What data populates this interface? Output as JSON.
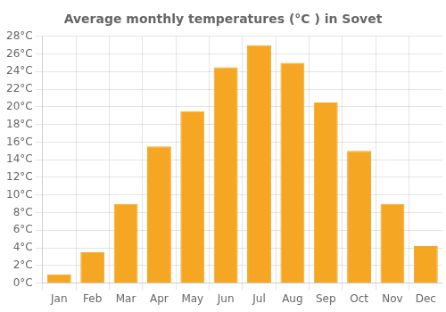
{
  "chart_data": {
    "type": "bar",
    "title": "Average monthly temperatures (°C ) in Sovet",
    "categories": [
      "Jan",
      "Feb",
      "Mar",
      "Apr",
      "May",
      "Jun",
      "Jul",
      "Aug",
      "Sep",
      "Oct",
      "Nov",
      "Dec"
    ],
    "values": [
      1,
      3.5,
      9,
      15.5,
      19.5,
      24.5,
      27,
      25,
      20.5,
      15,
      9,
      4.2
    ],
    "color": "#F5A623",
    "ylim": [
      0,
      28
    ],
    "yticks": [
      {
        "value": 0,
        "label": "0°C"
      },
      {
        "value": 2,
        "label": "2°C"
      },
      {
        "value": 4,
        "label": "4°C"
      },
      {
        "value": 6,
        "label": "6°C"
      },
      {
        "value": 8,
        "label": "8°C"
      },
      {
        "value": 10,
        "label": "10°C"
      },
      {
        "value": 12,
        "label": "12°C"
      },
      {
        "value": 14,
        "label": "14°C"
      },
      {
        "value": 16,
        "label": "16°C"
      },
      {
        "value": 18,
        "label": "18°C"
      },
      {
        "value": 20,
        "label": "20°C"
      },
      {
        "value": 22,
        "label": "22°C"
      },
      {
        "value": 24,
        "label": "24°C"
      },
      {
        "value": 26,
        "label": "26°C"
      },
      {
        "value": 28,
        "label": "28°C"
      }
    ],
    "grid": true
  }
}
